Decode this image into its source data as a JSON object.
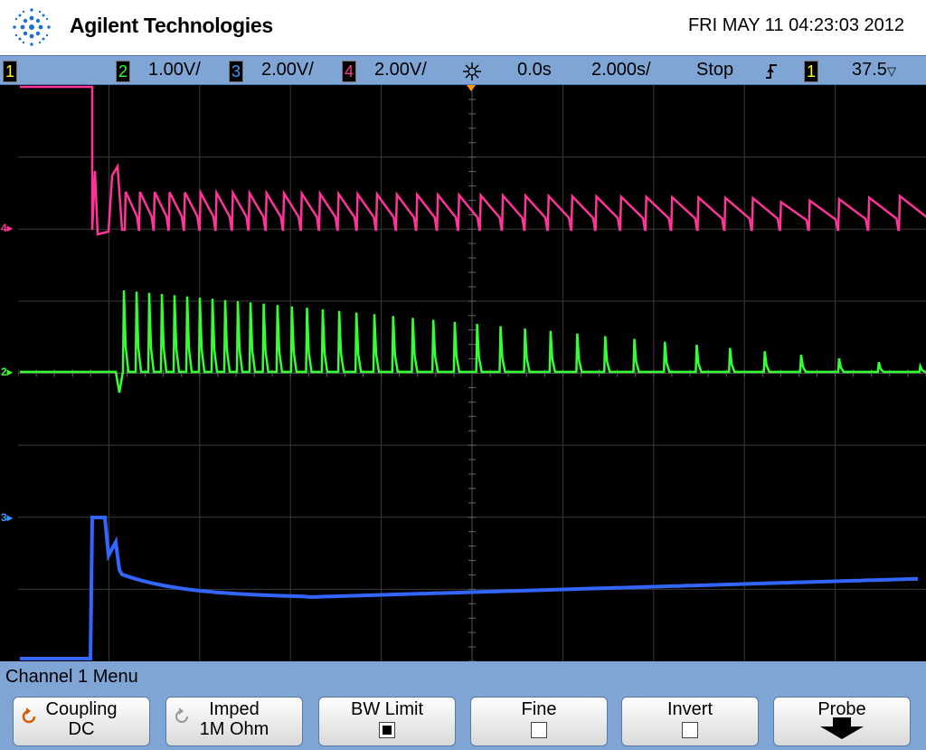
{
  "header": {
    "brand": "Agilent Technologies",
    "datetime": "FRI MAY 11 04:23:03 2012"
  },
  "status": {
    "ch1": "1",
    "ch2": "2",
    "ch2_scale": "1.00V/",
    "ch3": "3",
    "ch3_scale": "2.00V/",
    "ch4": "4",
    "ch4_scale": "2.00V/",
    "delay": "0.0s",
    "timebase": "2.000s/",
    "run_state": "Stop",
    "trig_source": "1",
    "trig_level": "37.5",
    "trig_level_unit": "▽"
  },
  "markers": {
    "ch4": "4",
    "ch2": "2",
    "ch3": "3"
  },
  "colors": {
    "ch1": "#ffff00",
    "ch2": "#33ff33",
    "ch3": "#3366ff",
    "ch4": "#ff3399",
    "grid": "#555555"
  },
  "menu": {
    "title": "Channel 1  Menu",
    "softkeys": [
      {
        "label": "Coupling",
        "value": "DC",
        "icon": "rotate-icon"
      },
      {
        "label": "Imped",
        "value": "1M Ohm",
        "icon": "rotate-icon"
      },
      {
        "label": "BW Limit",
        "checked": true
      },
      {
        "label": "Fine",
        "checked": false
      },
      {
        "label": "Invert",
        "checked": false
      },
      {
        "label": "Probe",
        "icon": "arrow-down-icon"
      }
    ]
  }
}
